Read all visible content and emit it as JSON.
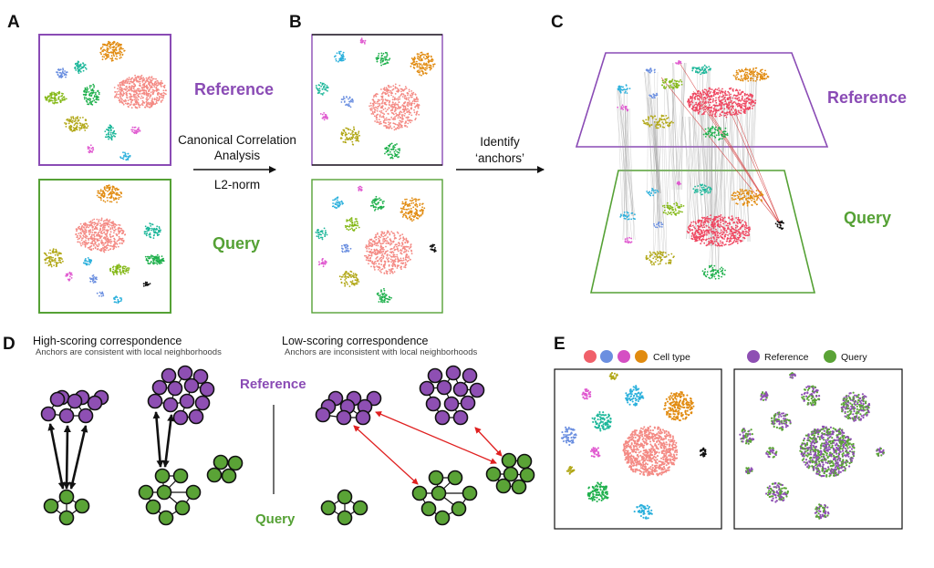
{
  "panels": {
    "a": {
      "letter": "A",
      "reference_label": "Reference",
      "query_label": "Query"
    },
    "b": {
      "letter": "B"
    },
    "c": {
      "letter": "C",
      "reference_label": "Reference",
      "query_label": "Query"
    },
    "d": {
      "letter": "D",
      "high_title": "High-scoring correspondence",
      "high_subtitle": "Anchors are consistent with local neighborhoods",
      "low_title": "Low-scoring correspondence",
      "low_subtitle": "Anchors are inconsistent with local neighborhoods",
      "reference_label": "Reference",
      "query_label": "Query"
    },
    "e": {
      "letter": "E",
      "cell_type_label": "Cell type",
      "reference_legend": "Reference",
      "query_legend": "Query"
    }
  },
  "arrows": {
    "cca_line1": "Canonical Correlation",
    "cca_line2": "Analysis",
    "cca_line3": "L2-norm",
    "anchors_line1": "Identify",
    "anchors_line2": "‘anchors’"
  },
  "colors": {
    "reference_purple": "#8a4bb5",
    "query_green": "#55a135",
    "node_purple": "#8e4fb3",
    "node_green": "#5aa336",
    "salmon": "#f48a84",
    "orange": "#e18b10",
    "green": "#1fb04c",
    "teal": "#1db79a",
    "olive": "#b1a716",
    "yellowgreen": "#84b817",
    "blue": "#6b8fe0",
    "cyan": "#2bb0dc",
    "magenta": "#e05ad0",
    "black": "#111111",
    "red_c": "#ef4761",
    "anchor_red": "#e02020"
  }
}
